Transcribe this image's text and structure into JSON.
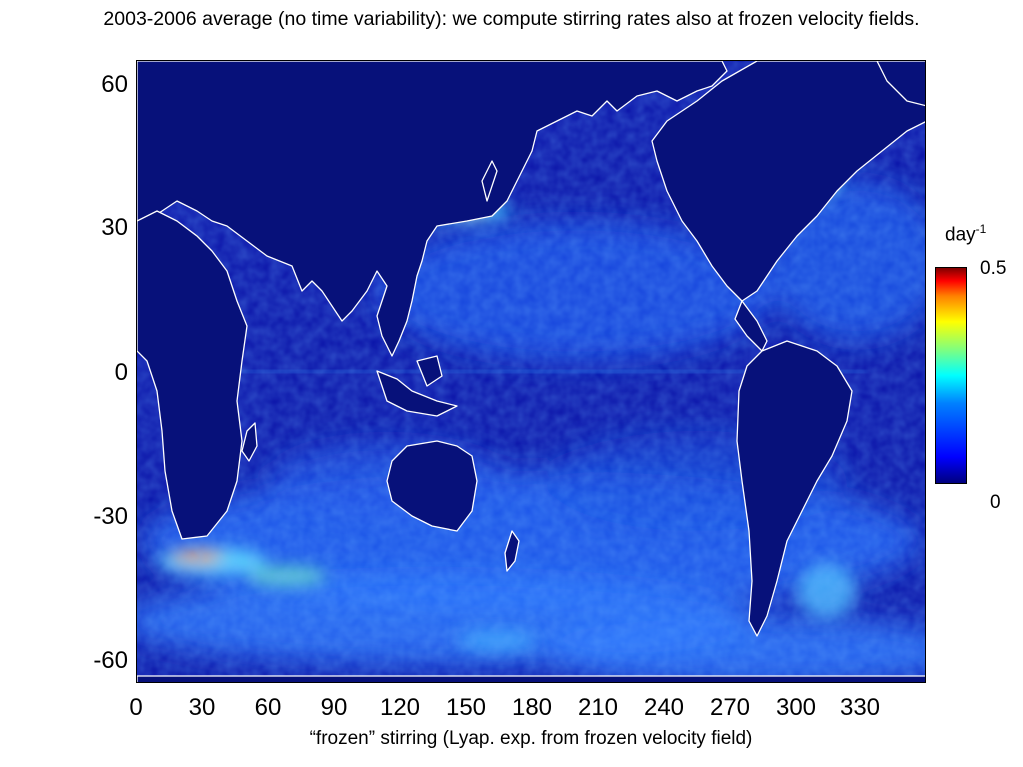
{
  "title": "2003-2006 average (no time variability): we compute stirring rates also at frozen velocity fields.",
  "caption": "“frozen” stirring (Lyap. exp. from frozen velocity field)",
  "map": {
    "y_ticks": [
      "60",
      "30",
      "0",
      "-30",
      "-60"
    ],
    "x_ticks": [
      "0",
      "30",
      "60",
      "90",
      "120",
      "150",
      "180",
      "210",
      "240",
      "270",
      "300",
      "330"
    ],
    "colors": {
      "ocean": "#0a10a0",
      "land": "#07117a",
      "coast": "#ffffff"
    }
  },
  "colorbar": {
    "unit": "day",
    "unit_exp": "-1",
    "max_label": "0.5",
    "min_label": "0",
    "colormap": "jet"
  }
}
